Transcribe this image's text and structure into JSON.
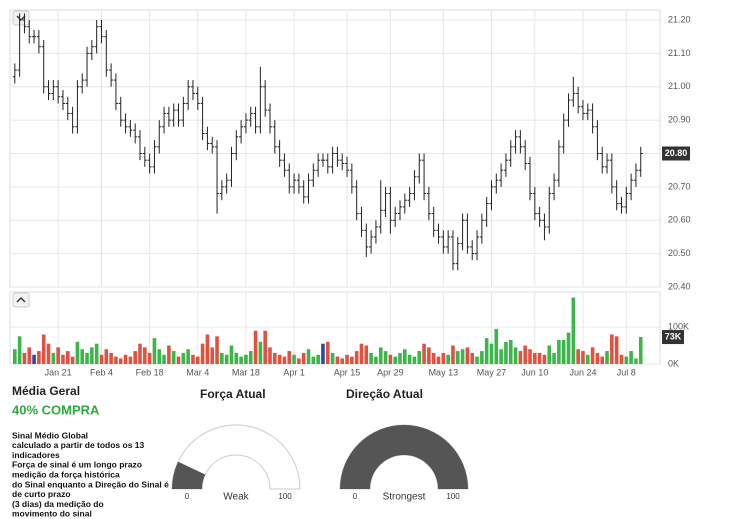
{
  "chart_data": [
    {
      "type": "ohlc",
      "color": "#222222",
      "grid": true,
      "xlim": [
        -1,
        134
      ],
      "ylim": [
        20.4,
        21.23
      ],
      "yticks": [
        {
          "value": 20.4,
          "label": "20.40"
        },
        {
          "value": 20.5,
          "label": "20.50"
        },
        {
          "value": 20.6,
          "label": "20.60"
        },
        {
          "value": 20.7,
          "label": "20.70"
        },
        {
          "value": 20.8,
          "label": "20.80"
        },
        {
          "value": 20.9,
          "label": "20.90"
        },
        {
          "value": 21.0,
          "label": "21.00"
        },
        {
          "value": 21.1,
          "label": "21.10"
        },
        {
          "value": 21.2,
          "label": "21.20"
        }
      ],
      "current": {
        "value": 20.8,
        "label": "20.80"
      },
      "open": [
        21.03,
        21.05,
        21.2,
        21.18,
        21.15,
        21.15,
        21.12,
        21.0,
        20.98,
        21.0,
        20.97,
        20.95,
        20.92,
        20.88,
        21.0,
        21.02,
        21.1,
        21.12,
        21.18,
        21.15,
        21.05,
        21.02,
        20.95,
        20.9,
        20.88,
        20.87,
        20.85,
        20.8,
        20.78,
        20.76,
        20.82,
        20.88,
        20.92,
        20.9,
        20.93,
        20.9,
        20.95,
        21.0,
        20.98,
        20.95,
        20.86,
        20.83,
        20.82,
        20.68,
        20.7,
        20.72,
        20.8,
        20.85,
        20.88,
        20.9,
        20.92,
        20.88,
        21.0,
        20.93,
        20.88,
        20.82,
        20.78,
        20.75,
        20.7,
        20.72,
        20.7,
        20.67,
        20.72,
        20.75,
        20.78,
        20.78,
        20.76,
        20.8,
        20.78,
        20.77,
        20.75,
        20.7,
        20.62,
        20.57,
        20.52,
        20.55,
        20.58,
        20.63,
        20.68,
        20.6,
        20.62,
        20.64,
        20.66,
        20.68,
        20.73,
        20.78,
        20.68,
        20.62,
        20.57,
        20.55,
        20.52,
        20.55,
        20.47,
        20.53,
        20.6,
        20.52,
        20.5,
        20.55,
        20.6,
        20.65,
        20.7,
        20.72,
        20.75,
        20.78,
        20.82,
        20.85,
        20.82,
        20.77,
        20.68,
        20.62,
        20.6,
        20.58,
        20.68,
        20.72,
        20.82,
        20.9,
        20.96,
        20.98,
        20.94,
        20.92,
        20.93,
        20.88,
        20.8,
        20.76,
        20.78,
        20.7,
        20.65,
        20.64,
        20.68,
        20.72,
        20.75
      ],
      "high": [
        21.07,
        21.22,
        21.22,
        21.2,
        21.17,
        21.17,
        21.14,
        21.02,
        21.02,
        21.02,
        20.99,
        20.97,
        20.94,
        21.02,
        21.04,
        21.12,
        21.14,
        21.2,
        21.2,
        21.17,
        21.07,
        21.04,
        20.97,
        20.92,
        20.9,
        20.89,
        20.87,
        20.82,
        20.8,
        20.84,
        20.9,
        20.94,
        20.94,
        20.95,
        20.95,
        20.97,
        21.02,
        21.02,
        21.0,
        20.97,
        20.88,
        20.85,
        20.84,
        20.72,
        20.74,
        20.82,
        20.87,
        20.9,
        20.92,
        20.94,
        20.94,
        21.06,
        21.02,
        20.95,
        20.9,
        20.84,
        20.8,
        20.77,
        20.74,
        20.74,
        20.72,
        20.74,
        20.77,
        20.8,
        20.8,
        20.8,
        20.82,
        20.82,
        20.8,
        20.79,
        20.77,
        20.72,
        20.64,
        20.59,
        20.57,
        20.6,
        20.72,
        20.7,
        20.7,
        20.64,
        20.66,
        20.68,
        20.7,
        20.75,
        20.8,
        20.8,
        20.7,
        20.64,
        20.59,
        20.57,
        20.57,
        20.57,
        20.55,
        20.62,
        20.62,
        20.54,
        20.57,
        20.62,
        20.67,
        20.72,
        20.74,
        20.77,
        20.8,
        20.84,
        20.87,
        20.87,
        20.84,
        20.79,
        20.7,
        20.64,
        20.62,
        20.7,
        20.74,
        20.84,
        20.92,
        20.98,
        21.03,
        21.0,
        20.96,
        20.95,
        20.95,
        20.9,
        20.82,
        20.8,
        20.8,
        20.72,
        20.67,
        20.7,
        20.74,
        20.77,
        20.82
      ],
      "low": [
        21.01,
        21.03,
        21.16,
        21.13,
        21.13,
        21.1,
        20.98,
        20.96,
        20.96,
        20.95,
        20.93,
        20.9,
        20.86,
        20.86,
        20.98,
        21.0,
        21.08,
        21.1,
        21.13,
        21.03,
        21.0,
        20.93,
        20.88,
        20.86,
        20.85,
        20.83,
        20.78,
        20.76,
        20.74,
        20.74,
        20.8,
        20.86,
        20.88,
        20.88,
        20.88,
        20.88,
        20.93,
        20.96,
        20.93,
        20.84,
        20.81,
        20.8,
        20.62,
        20.66,
        20.68,
        20.7,
        20.78,
        20.83,
        20.86,
        20.88,
        20.86,
        20.86,
        20.91,
        20.86,
        20.8,
        20.76,
        20.73,
        20.68,
        20.68,
        20.68,
        20.65,
        20.65,
        20.7,
        20.73,
        20.76,
        20.74,
        20.74,
        20.76,
        20.75,
        20.73,
        20.68,
        20.6,
        20.55,
        20.49,
        20.5,
        20.53,
        20.56,
        20.61,
        20.56,
        20.58,
        20.6,
        20.62,
        20.64,
        20.66,
        20.71,
        20.66,
        20.6,
        20.55,
        20.53,
        20.5,
        20.5,
        20.45,
        20.45,
        20.51,
        20.5,
        20.48,
        20.48,
        20.53,
        20.58,
        20.63,
        20.68,
        20.7,
        20.73,
        20.76,
        20.8,
        20.8,
        20.75,
        20.66,
        20.6,
        20.58,
        20.54,
        20.56,
        20.66,
        20.7,
        20.8,
        20.88,
        20.94,
        20.92,
        20.9,
        20.9,
        20.86,
        20.78,
        20.74,
        20.74,
        20.68,
        20.63,
        20.62,
        20.62,
        20.66,
        20.7,
        20.73
      ],
      "close": [
        21.05,
        21.2,
        21.18,
        21.15,
        21.15,
        21.12,
        21.0,
        20.98,
        21.0,
        20.97,
        20.95,
        20.92,
        20.88,
        21.0,
        21.02,
        21.1,
        21.12,
        21.18,
        21.15,
        21.05,
        21.02,
        20.95,
        20.9,
        20.88,
        20.87,
        20.85,
        20.8,
        20.78,
        20.76,
        20.82,
        20.88,
        20.92,
        20.9,
        20.93,
        20.9,
        20.95,
        21.0,
        20.98,
        20.95,
        20.86,
        20.83,
        20.82,
        20.68,
        20.7,
        20.72,
        20.8,
        20.85,
        20.88,
        20.9,
        20.92,
        20.88,
        21.0,
        20.93,
        20.88,
        20.82,
        20.78,
        20.75,
        20.7,
        20.72,
        20.7,
        20.67,
        20.72,
        20.75,
        20.78,
        20.78,
        20.76,
        20.8,
        20.78,
        20.77,
        20.75,
        20.7,
        20.62,
        20.57,
        20.52,
        20.55,
        20.58,
        20.63,
        20.68,
        20.6,
        20.62,
        20.64,
        20.66,
        20.68,
        20.73,
        20.78,
        20.68,
        20.62,
        20.57,
        20.55,
        20.52,
        20.55,
        20.47,
        20.53,
        20.6,
        20.52,
        20.5,
        20.55,
        20.6,
        20.65,
        20.7,
        20.72,
        20.75,
        20.78,
        20.82,
        20.85,
        20.82,
        20.77,
        20.68,
        20.62,
        20.6,
        20.58,
        20.68,
        20.72,
        20.82,
        20.9,
        20.96,
        20.98,
        20.94,
        20.92,
        20.93,
        20.88,
        20.8,
        20.76,
        20.78,
        20.7,
        20.65,
        20.64,
        20.68,
        20.72,
        20.75,
        20.8
      ]
    },
    {
      "type": "bar",
      "up_color": "#3cb54a",
      "down_color": "#e0523f",
      "flat_color": "#2a4a9c",
      "grid": true,
      "xlim": [
        -1,
        134
      ],
      "ylim": [
        0,
        195000
      ],
      "yticks": [
        {
          "value": 0,
          "label": "0K"
        },
        {
          "value": 100000,
          "label": "100K"
        }
      ],
      "xticks": [
        {
          "value": 9,
          "label": "Jan 21"
        },
        {
          "value": 18,
          "label": "Feb 4"
        },
        {
          "value": 28,
          "label": "Feb 18"
        },
        {
          "value": 38,
          "label": "Mar 4"
        },
        {
          "value": 48,
          "label": "Mar 18"
        },
        {
          "value": 58,
          "label": "Apr 1"
        },
        {
          "value": 69,
          "label": "Apr 15"
        },
        {
          "value": 78,
          "label": "Apr 29"
        },
        {
          "value": 89,
          "label": "May 13"
        },
        {
          "value": 99,
          "label": "May 27"
        },
        {
          "value": 108,
          "label": "Jun 10"
        },
        {
          "value": 118,
          "label": "Jun 24"
        },
        {
          "value": 127,
          "label": "Jul 8"
        }
      ],
      "current": {
        "value": 73000,
        "label": "73K"
      },
      "values": [
        40000,
        75000,
        30000,
        45000,
        25000,
        35000,
        80000,
        55000,
        30000,
        45000,
        25000,
        35000,
        20000,
        60000,
        40000,
        30000,
        45000,
        55000,
        25000,
        40000,
        30000,
        20000,
        15000,
        25000,
        20000,
        35000,
        55000,
        45000,
        30000,
        70000,
        40000,
        25000,
        50000,
        35000,
        20000,
        30000,
        40000,
        25000,
        20000,
        55000,
        80000,
        45000,
        75000,
        30000,
        25000,
        50000,
        30000,
        20000,
        25000,
        35000,
        90000,
        60000,
        90000,
        45000,
        30000,
        25000,
        20000,
        35000,
        25000,
        15000,
        30000,
        40000,
        20000,
        25000,
        55000,
        60000,
        30000,
        20000,
        15000,
        25000,
        20000,
        35000,
        55000,
        50000,
        30000,
        20000,
        45000,
        35000,
        25000,
        20000,
        30000,
        40000,
        25000,
        20000,
        35000,
        55000,
        45000,
        30000,
        20000,
        30000,
        25000,
        50000,
        35000,
        40000,
        45000,
        30000,
        20000,
        35000,
        70000,
        55000,
        95000,
        40000,
        60000,
        65000,
        45000,
        35000,
        50000,
        40000,
        30000,
        30000,
        25000,
        50000,
        30000,
        65000,
        65000,
        85000,
        180000,
        40000,
        35000,
        25000,
        45000,
        30000,
        20000,
        35000,
        80000,
        75000,
        25000,
        20000,
        35000,
        15000,
        73000
      ]
    }
  ],
  "summary": {
    "title": "Média Geral",
    "signal": "40% COMPRA",
    "description": [
      "Sinal Médio Global",
      "calculado a partir de todos os 13",
      "indicadores",
      "Força de sinal é um longo prazo",
      "medição da força histórica",
      "do Sinal enquanto a Direção do Sinal é",
      "de curto prazo",
      "(3 dias) da medição do",
      "movimento do sinal"
    ]
  },
  "gauges": [
    {
      "title": "Força Atual",
      "value": 14,
      "range": [
        0,
        100
      ],
      "label": "Weak",
      "color": "#555555"
    },
    {
      "title": "Direção Atual",
      "value": 100,
      "range": [
        0,
        100
      ],
      "label": "Strongest",
      "color": "#555555"
    }
  ]
}
